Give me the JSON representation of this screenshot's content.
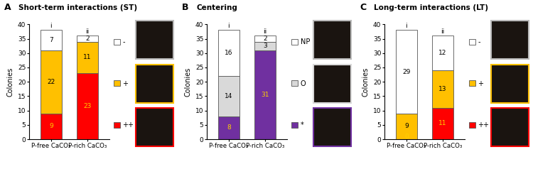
{
  "chart_data": [
    {
      "type": "bar",
      "stacked": true,
      "data_labels": true,
      "legend": "right",
      "panel": "A",
      "title": "Short-term interactions (ST)",
      "y_label": "Colonies",
      "categories": [
        "P-free CaCO₃",
        "P-rich CaCO₃"
      ],
      "bar_annotations": [
        "i",
        "ii"
      ],
      "series": [
        {
          "name": "++",
          "color": "#ff0000",
          "values": [
            9,
            23
          ]
        },
        {
          "name": "+",
          "color": "#ffc000",
          "values": [
            22,
            11
          ]
        },
        {
          "name": "-",
          "color": "#ffffff",
          "values": [
            7,
            2
          ]
        }
      ],
      "ylim": [
        0,
        40
      ],
      "yticks": [
        0,
        5,
        10,
        15,
        20,
        25,
        30,
        35,
        40
      ]
    },
    {
      "type": "bar",
      "stacked": true,
      "data_labels": true,
      "legend": "right",
      "panel": "B",
      "title": "Centering",
      "y_label": "Colonies",
      "categories": [
        "P-free CaCO₃",
        "P-rich CaCO₃"
      ],
      "bar_annotations": [
        "i",
        "ii"
      ],
      "series": [
        {
          "name": "*",
          "color": "#7030a0",
          "values": [
            8,
            31
          ]
        },
        {
          "name": "O",
          "color": "#d9d9d9",
          "values": [
            14,
            3
          ]
        },
        {
          "name": "NP",
          "color": "#ffffff",
          "values": [
            16,
            2
          ]
        }
      ],
      "ylim": [
        0,
        40
      ],
      "yticks": [
        0,
        5,
        10,
        15,
        20,
        25,
        30,
        35,
        40
      ]
    },
    {
      "type": "bar",
      "stacked": true,
      "data_labels": true,
      "legend": "right",
      "panel": "C",
      "title": "Long-term interactions (LT)",
      "y_label": "Colonies",
      "categories": [
        "P-free CaCO₃",
        "P-rich CaCO₃"
      ],
      "bar_annotations": [
        "i",
        "ii"
      ],
      "series": [
        {
          "name": "++",
          "color": "#ff0000",
          "values": [
            0,
            11
          ]
        },
        {
          "name": "+",
          "color": "#ffc000",
          "values": [
            9,
            13
          ]
        },
        {
          "name": "-",
          "color": "#ffffff",
          "values": [
            29,
            12
          ]
        }
      ],
      "ylim": [
        0,
        40
      ],
      "yticks": [
        0,
        5,
        10,
        15,
        20,
        25,
        30,
        35,
        40
      ]
    }
  ]
}
